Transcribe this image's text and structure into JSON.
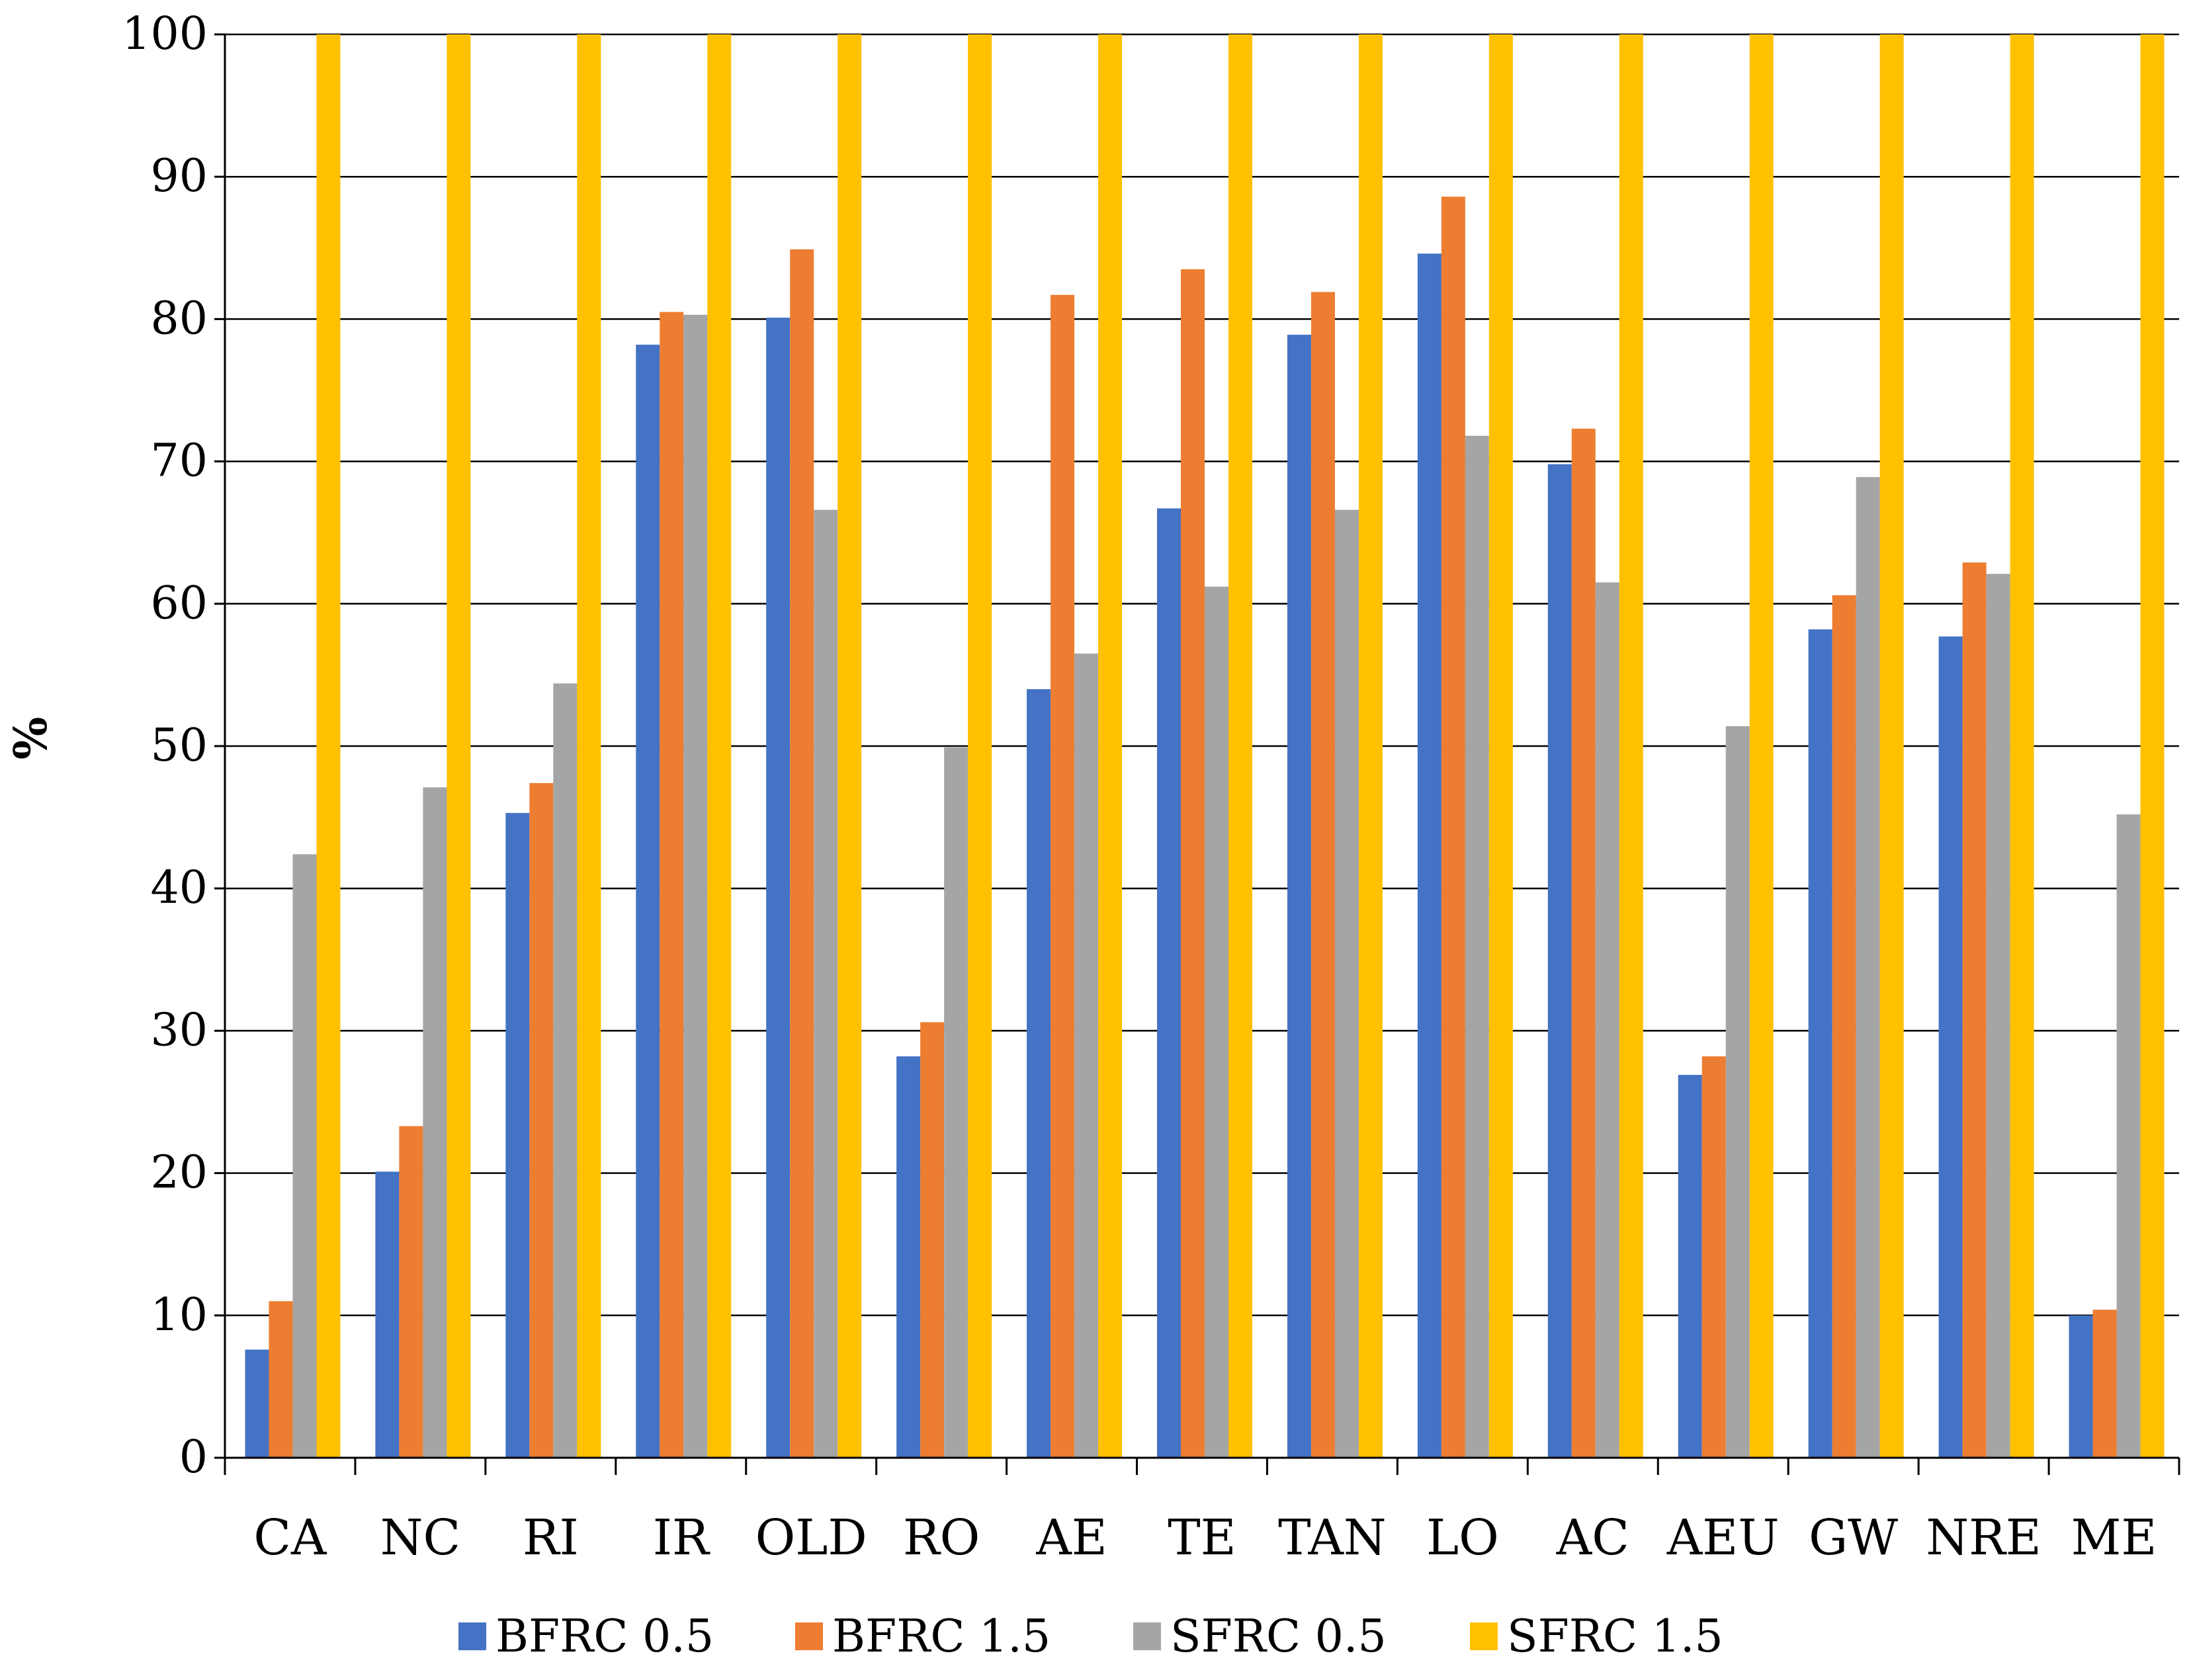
{
  "chart_data": {
    "type": "bar",
    "title": "",
    "xlabel": "",
    "ylabel": "%",
    "ylim": [
      0,
      100
    ],
    "yticks": [
      0,
      10,
      20,
      30,
      40,
      50,
      60,
      70,
      80,
      90,
      100
    ],
    "grid": true,
    "legend_position": "bottom",
    "categories": [
      "CA",
      "NC",
      "RI",
      "IR",
      "OLD",
      "RO",
      "AE",
      "TE",
      "TAN",
      "LO",
      "AC",
      "AEU",
      "GW",
      "NRE",
      "ME"
    ],
    "series": [
      {
        "name": "BFRC 0.5",
        "color": "#4472C4",
        "values": [
          7.6,
          20.1,
          45.3,
          78.2,
          80.1,
          28.2,
          54.0,
          66.7,
          78.9,
          84.6,
          69.8,
          26.9,
          58.2,
          57.7,
          10.0
        ]
      },
      {
        "name": "BFRC 1.5",
        "color": "#ED7D31",
        "values": [
          11.0,
          23.3,
          47.4,
          80.5,
          84.9,
          30.6,
          81.7,
          83.5,
          81.9,
          88.6,
          72.3,
          28.2,
          60.6,
          62.9,
          10.4
        ]
      },
      {
        "name": "SFRC 0.5",
        "color": "#A5A5A5",
        "values": [
          42.4,
          47.1,
          54.4,
          80.3,
          66.6,
          49.9,
          56.5,
          61.2,
          66.6,
          71.8,
          61.5,
          51.4,
          68.9,
          62.1,
          45.2
        ]
      },
      {
        "name": "SFRC 1.5",
        "color": "#FFC000",
        "values": [
          100,
          100,
          100,
          100,
          100,
          100,
          100,
          100,
          100,
          100,
          100,
          100,
          100,
          100,
          100
        ]
      }
    ]
  }
}
